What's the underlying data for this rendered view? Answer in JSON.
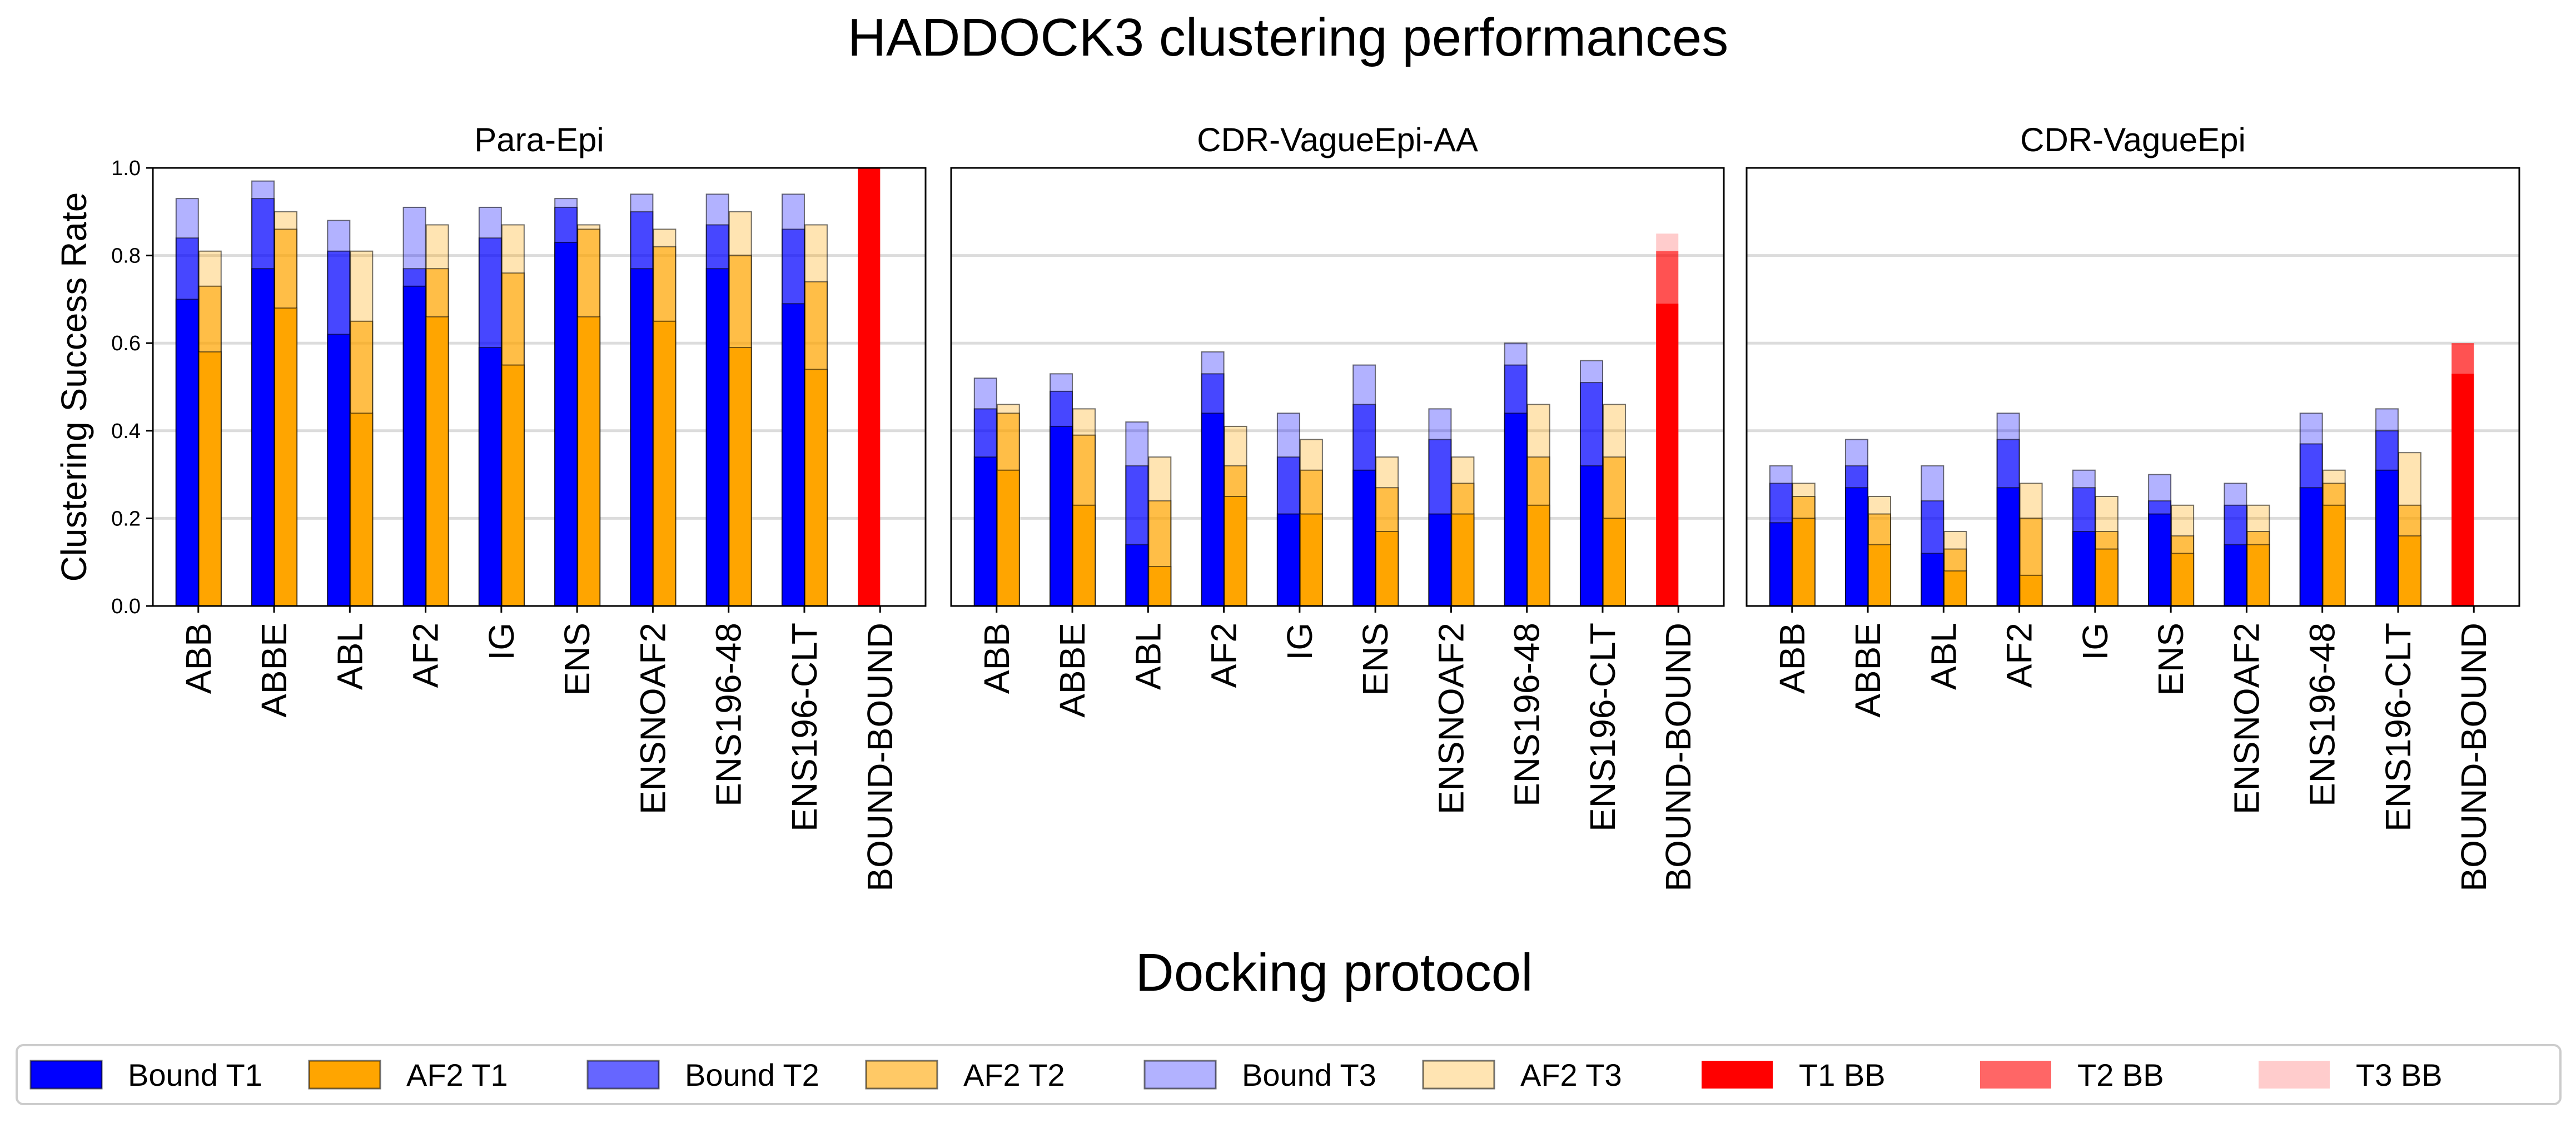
{
  "title": "HADDOCK3 clustering performances",
  "xlabel": "Docking protocol",
  "ylabel": "Clustering Success Rate",
  "colors": {
    "bound": "#0000ff",
    "af2": "#ffa500",
    "bb": "#ff0000"
  },
  "legend": {
    "placement": "bottom",
    "items": [
      {
        "label": "Bound T1",
        "color": "#0000ff",
        "alpha": 1.0,
        "edge": true
      },
      {
        "label": "AF2 T1",
        "color": "#ffa500",
        "alpha": 1.0,
        "edge": true
      },
      {
        "label": "Bound T2",
        "color": "#0000ff",
        "alpha": 0.6,
        "edge": true
      },
      {
        "label": "AF2 T2",
        "color": "#ffa500",
        "alpha": 0.6,
        "edge": true
      },
      {
        "label": "Bound T3",
        "color": "#0000ff",
        "alpha": 0.3,
        "edge": true
      },
      {
        "label": "AF2 T3",
        "color": "#ffa500",
        "alpha": 0.3,
        "edge": true
      },
      {
        "label": "T1 BB",
        "color": "#ff0000",
        "alpha": 1.0,
        "edge": false
      },
      {
        "label": "T2 BB",
        "color": "#ff0000",
        "alpha": 0.6,
        "edge": false
      },
      {
        "label": "T3 BB",
        "color": "#ff0000",
        "alpha": 0.2,
        "edge": false
      }
    ]
  },
  "chart_data": [
    {
      "type": "bar",
      "title": "Para-Epi",
      "ylim": [
        0,
        1.0
      ],
      "yticks": [
        "0.0",
        "0.2",
        "0.4",
        "0.6",
        "0.8",
        "1.0"
      ],
      "grid": true,
      "categories": [
        "ABB",
        "ABBE",
        "ABL",
        "AF2",
        "IG",
        "ENS",
        "ENSNOAF2",
        "ENS196-48",
        "ENS196-CLT",
        "BOUND-BOUND"
      ],
      "series": [
        {
          "name": "Bound T1",
          "values": [
            0.7,
            0.77,
            0.62,
            0.73,
            0.59,
            0.83,
            0.77,
            0.77,
            0.69,
            null
          ]
        },
        {
          "name": "Bound T2",
          "values": [
            0.84,
            0.93,
            0.81,
            0.77,
            0.84,
            0.91,
            0.9,
            0.87,
            0.86,
            null
          ]
        },
        {
          "name": "Bound T3",
          "values": [
            0.93,
            0.97,
            0.88,
            0.91,
            0.91,
            0.93,
            0.94,
            0.94,
            0.94,
            null
          ]
        },
        {
          "name": "AF2 T1",
          "values": [
            0.58,
            0.68,
            0.44,
            0.66,
            0.55,
            0.66,
            0.65,
            0.59,
            0.54,
            null
          ]
        },
        {
          "name": "AF2 T2",
          "values": [
            0.73,
            0.86,
            0.65,
            0.77,
            0.76,
            0.86,
            0.82,
            0.8,
            0.74,
            null
          ]
        },
        {
          "name": "AF2 T3",
          "values": [
            0.81,
            0.9,
            0.81,
            0.87,
            0.87,
            0.87,
            0.86,
            0.9,
            0.87,
            null
          ]
        },
        {
          "name": "T1 BB",
          "values": [
            null,
            null,
            null,
            null,
            null,
            null,
            null,
            null,
            null,
            1.0
          ]
        },
        {
          "name": "T2 BB",
          "values": [
            null,
            null,
            null,
            null,
            null,
            null,
            null,
            null,
            null,
            1.0
          ]
        },
        {
          "name": "T3 BB",
          "values": [
            null,
            null,
            null,
            null,
            null,
            null,
            null,
            null,
            null,
            1.0
          ]
        }
      ]
    },
    {
      "type": "bar",
      "title": "CDR-VagueEpi-AA",
      "ylim": [
        0,
        1.0
      ],
      "yticks": [],
      "grid": true,
      "categories": [
        "ABB",
        "ABBE",
        "ABL",
        "AF2",
        "IG",
        "ENS",
        "ENSNOAF2",
        "ENS196-48",
        "ENS196-CLT",
        "BOUND-BOUND"
      ],
      "series": [
        {
          "name": "Bound T1",
          "values": [
            0.34,
            0.41,
            0.14,
            0.44,
            0.21,
            0.31,
            0.21,
            0.44,
            0.32,
            null
          ]
        },
        {
          "name": "Bound T2",
          "values": [
            0.45,
            0.49,
            0.32,
            0.53,
            0.34,
            0.46,
            0.38,
            0.55,
            0.51,
            null
          ]
        },
        {
          "name": "Bound T3",
          "values": [
            0.52,
            0.53,
            0.42,
            0.58,
            0.44,
            0.55,
            0.45,
            0.6,
            0.56,
            null
          ]
        },
        {
          "name": "AF2 T1",
          "values": [
            0.31,
            0.23,
            0.09,
            0.25,
            0.21,
            0.17,
            0.21,
            0.23,
            0.2,
            null
          ]
        },
        {
          "name": "AF2 T2",
          "values": [
            0.44,
            0.39,
            0.24,
            0.32,
            0.31,
            0.27,
            0.28,
            0.34,
            0.34,
            null
          ]
        },
        {
          "name": "AF2 T3",
          "values": [
            0.46,
            0.45,
            0.34,
            0.41,
            0.38,
            0.34,
            0.34,
            0.46,
            0.46,
            null
          ]
        },
        {
          "name": "T1 BB",
          "values": [
            null,
            null,
            null,
            null,
            null,
            null,
            null,
            null,
            null,
            0.69
          ]
        },
        {
          "name": "T2 BB",
          "values": [
            null,
            null,
            null,
            null,
            null,
            null,
            null,
            null,
            null,
            0.81
          ]
        },
        {
          "name": "T3 BB",
          "values": [
            null,
            null,
            null,
            null,
            null,
            null,
            null,
            null,
            null,
            0.85
          ]
        }
      ]
    },
    {
      "type": "bar",
      "title": "CDR-VagueEpi",
      "ylim": [
        0,
        1.0
      ],
      "yticks": [],
      "grid": true,
      "categories": [
        "ABB",
        "ABBE",
        "ABL",
        "AF2",
        "IG",
        "ENS",
        "ENSNOAF2",
        "ENS196-48",
        "ENS196-CLT",
        "BOUND-BOUND"
      ],
      "series": [
        {
          "name": "Bound T1",
          "values": [
            0.19,
            0.27,
            0.12,
            0.27,
            0.17,
            0.21,
            0.14,
            0.27,
            0.31,
            null
          ]
        },
        {
          "name": "Bound T2",
          "values": [
            0.28,
            0.32,
            0.24,
            0.38,
            0.27,
            0.24,
            0.23,
            0.37,
            0.4,
            null
          ]
        },
        {
          "name": "Bound T3",
          "values": [
            0.32,
            0.38,
            0.32,
            0.44,
            0.31,
            0.3,
            0.28,
            0.44,
            0.45,
            null
          ]
        },
        {
          "name": "AF2 T1",
          "values": [
            0.2,
            0.14,
            0.08,
            0.07,
            0.13,
            0.12,
            0.14,
            0.23,
            0.16,
            null
          ]
        },
        {
          "name": "AF2 T2",
          "values": [
            0.25,
            0.21,
            0.13,
            0.2,
            0.17,
            0.16,
            0.17,
            0.28,
            0.23,
            null
          ]
        },
        {
          "name": "AF2 T3",
          "values": [
            0.28,
            0.25,
            0.17,
            0.28,
            0.25,
            0.23,
            0.23,
            0.31,
            0.35,
            null
          ]
        },
        {
          "name": "T1 BB",
          "values": [
            null,
            null,
            null,
            null,
            null,
            null,
            null,
            null,
            null,
            0.53
          ]
        },
        {
          "name": "T2 BB",
          "values": [
            null,
            null,
            null,
            null,
            null,
            null,
            null,
            null,
            null,
            0.6
          ]
        },
        {
          "name": "T3 BB",
          "values": [
            null,
            null,
            null,
            null,
            null,
            null,
            null,
            null,
            null,
            0.6
          ]
        }
      ]
    }
  ]
}
